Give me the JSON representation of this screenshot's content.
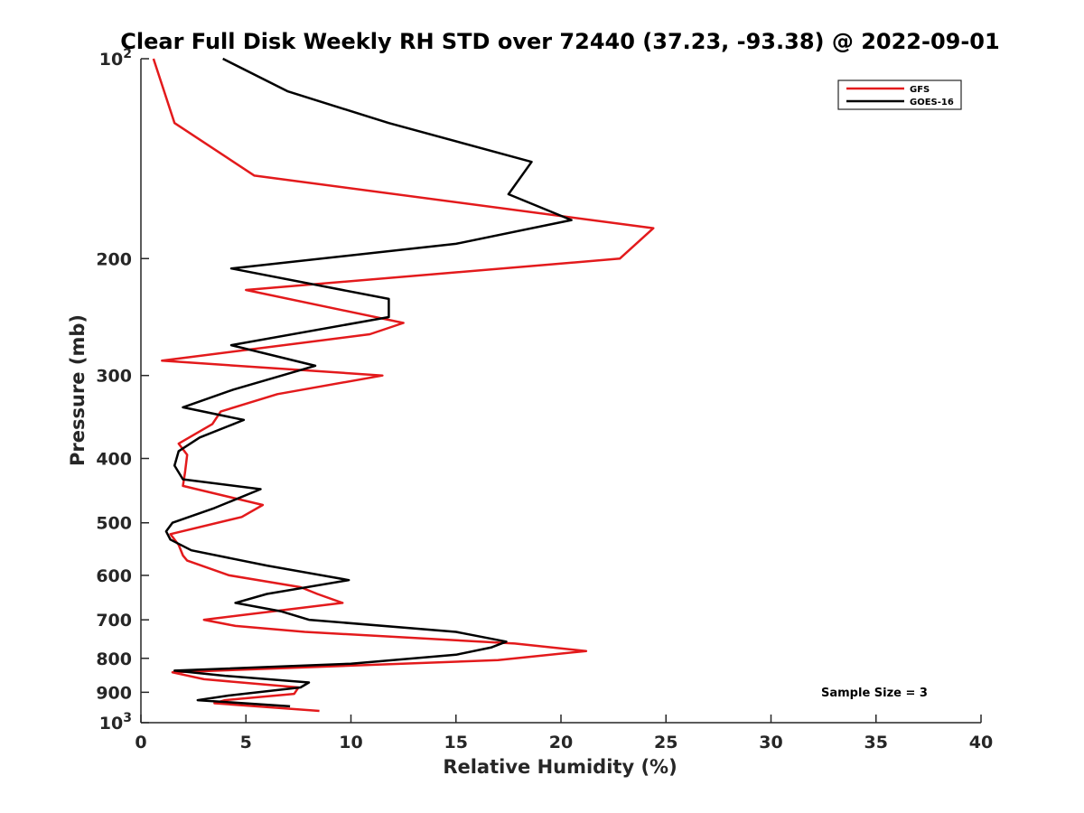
{
  "chart_data": {
    "type": "line",
    "title": "Clear Full Disk Weekly RH STD over 72440 (37.23, -93.38) @ 2022-09-01",
    "xlabel": "Relative Humidity (%)",
    "ylabel": "Pressure (mb)",
    "xlim": [
      0,
      40
    ],
    "ylim": [
      100,
      1000
    ],
    "y_scale": "log",
    "y_reversed": true,
    "grid": false,
    "legend_position": "top-right",
    "x_ticks": [
      0,
      5,
      10,
      15,
      20,
      25,
      30,
      35,
      40
    ],
    "x_tick_labels": [
      "0",
      "5",
      "10",
      "15",
      "20",
      "25",
      "30",
      "35",
      "40"
    ],
    "y_ticks": [
      200,
      300,
      400,
      500,
      600,
      700,
      800,
      900
    ],
    "y_tick_labels": [
      "200",
      "300",
      "400",
      "500",
      "600",
      "700",
      "800",
      "900"
    ],
    "y_ticks_power": [
      {
        "value": 100,
        "base": "10",
        "exponent": "2"
      },
      {
        "value": 1000,
        "base": "10",
        "exponent": "3"
      }
    ],
    "annotation": "Sample Size = 3",
    "series": [
      {
        "name": "GFS",
        "color": "#e31a1c",
        "points": [
          [
            0.6,
            100
          ],
          [
            1.6,
            125
          ],
          [
            5.4,
            150
          ],
          [
            24.4,
            180
          ],
          [
            22.8,
            200
          ],
          [
            5.0,
            223
          ],
          [
            12.5,
            250
          ],
          [
            10.9,
            260
          ],
          [
            1.0,
            285
          ],
          [
            11.5,
            300
          ],
          [
            6.5,
            320
          ],
          [
            3.8,
            340
          ],
          [
            3.4,
            355
          ],
          [
            1.8,
            380
          ],
          [
            2.2,
            395
          ],
          [
            2.1,
            420
          ],
          [
            2.0,
            440
          ],
          [
            5.8,
            470
          ],
          [
            4.8,
            490
          ],
          [
            1.4,
            520
          ],
          [
            1.8,
            540
          ],
          [
            2.0,
            560
          ],
          [
            2.2,
            570
          ],
          [
            4.2,
            600
          ],
          [
            7.6,
            625
          ],
          [
            8.4,
            640
          ],
          [
            9.6,
            660
          ],
          [
            3.0,
            700
          ],
          [
            4.5,
            715
          ],
          [
            7.8,
            730
          ],
          [
            17.8,
            760
          ],
          [
            21.2,
            780
          ],
          [
            17.0,
            805
          ],
          [
            1.5,
            840
          ],
          [
            3.0,
            860
          ],
          [
            7.5,
            885
          ],
          [
            7.3,
            905
          ],
          [
            4.0,
            925
          ],
          [
            3.5,
            935
          ],
          [
            8.5,
            960
          ]
        ]
      },
      {
        "name": "GOES-16",
        "color": "#000000",
        "points": [
          [
            3.9,
            100
          ],
          [
            7.0,
            112
          ],
          [
            11.8,
            125
          ],
          [
            18.6,
            143
          ],
          [
            17.5,
            160
          ],
          [
            20.5,
            175
          ],
          [
            15.0,
            190
          ],
          [
            4.3,
            207
          ],
          [
            11.8,
            230
          ],
          [
            11.8,
            245
          ],
          [
            4.3,
            270
          ],
          [
            8.3,
            290
          ],
          [
            4.4,
            315
          ],
          [
            2.0,
            335
          ],
          [
            4.9,
            350
          ],
          [
            2.8,
            372
          ],
          [
            1.8,
            390
          ],
          [
            1.6,
            410
          ],
          [
            2.0,
            430
          ],
          [
            5.7,
            445
          ],
          [
            3.5,
            475
          ],
          [
            1.5,
            500
          ],
          [
            1.2,
            515
          ],
          [
            1.4,
            530
          ],
          [
            2.4,
            550
          ],
          [
            6.0,
            580
          ],
          [
            9.9,
            610
          ],
          [
            6.0,
            640
          ],
          [
            4.5,
            660
          ],
          [
            6.7,
            680
          ],
          [
            8.0,
            700
          ],
          [
            15.0,
            730
          ],
          [
            17.4,
            755
          ],
          [
            16.7,
            770
          ],
          [
            15.0,
            790
          ],
          [
            10.0,
            815
          ],
          [
            1.6,
            835
          ],
          [
            4.0,
            850
          ],
          [
            8.0,
            870
          ],
          [
            7.6,
            885
          ],
          [
            4.2,
            910
          ],
          [
            2.7,
            925
          ],
          [
            7.1,
            945
          ]
        ]
      }
    ]
  }
}
